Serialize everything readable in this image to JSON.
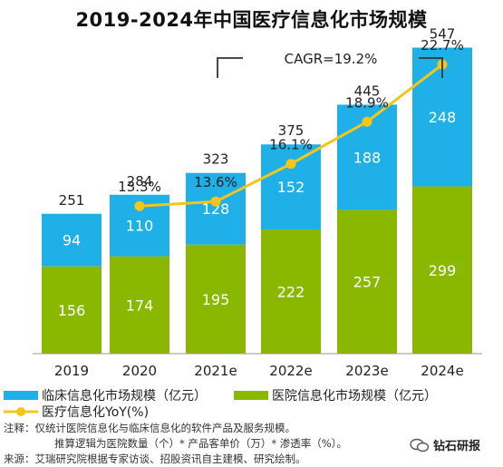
{
  "title": "2019-2024年中国医疗信息化市场规模",
  "cagr_label": "CAGR=19.2%",
  "chart_data": {
    "type": "bar",
    "stacked": true,
    "title": "2019-2024年中国医疗信息化市场规模",
    "categories": [
      "2019",
      "2020",
      "2021e",
      "2022e",
      "2023e",
      "2024e"
    ],
    "totals": [
      "251",
      "284",
      "323",
      "375",
      "445",
      "547"
    ],
    "series": [
      {
        "name": "医院信息化市场规模（亿元）",
        "values": [
          156,
          174,
          195,
          222,
          257,
          299
        ],
        "color": "#8ab800"
      },
      {
        "name": "临床信息化市场规模（亿元）",
        "values": [
          94,
          110,
          128,
          152,
          188,
          248
        ],
        "color": "#1fb0e8"
      }
    ],
    "line": {
      "name": "医疗信息化YoY(%)",
      "color": "#f5c518",
      "categories": [
        "2020",
        "2021e",
        "2022e",
        "2023e",
        "2024e"
      ],
      "values": [
        13.3,
        13.6,
        16.1,
        18.9,
        22.7
      ],
      "labels": [
        "13.3%",
        "13.6%",
        "16.1%",
        "18.9%",
        "22.7%"
      ]
    },
    "annotation": "CAGR=19.2%",
    "legend_position": "bottom"
  },
  "legend": {
    "clinical": "临床信息化市场规模（亿元）",
    "hospital": "医院信息化市场规模（亿元）",
    "yoy": "医疗信息化YoY(%)"
  },
  "notes": {
    "line1": "注释：仅统计医院信息化与临床信息化的软件产品及服务规模。",
    "line2": "推算逻辑为医院数量（个）* 产品客单价（万）* 渗透率（%）。",
    "line3": "来源：艾瑞研究院根据专家访谈、招股资讯自主建模、研究绘制。"
  },
  "watermark": "钻石研报"
}
